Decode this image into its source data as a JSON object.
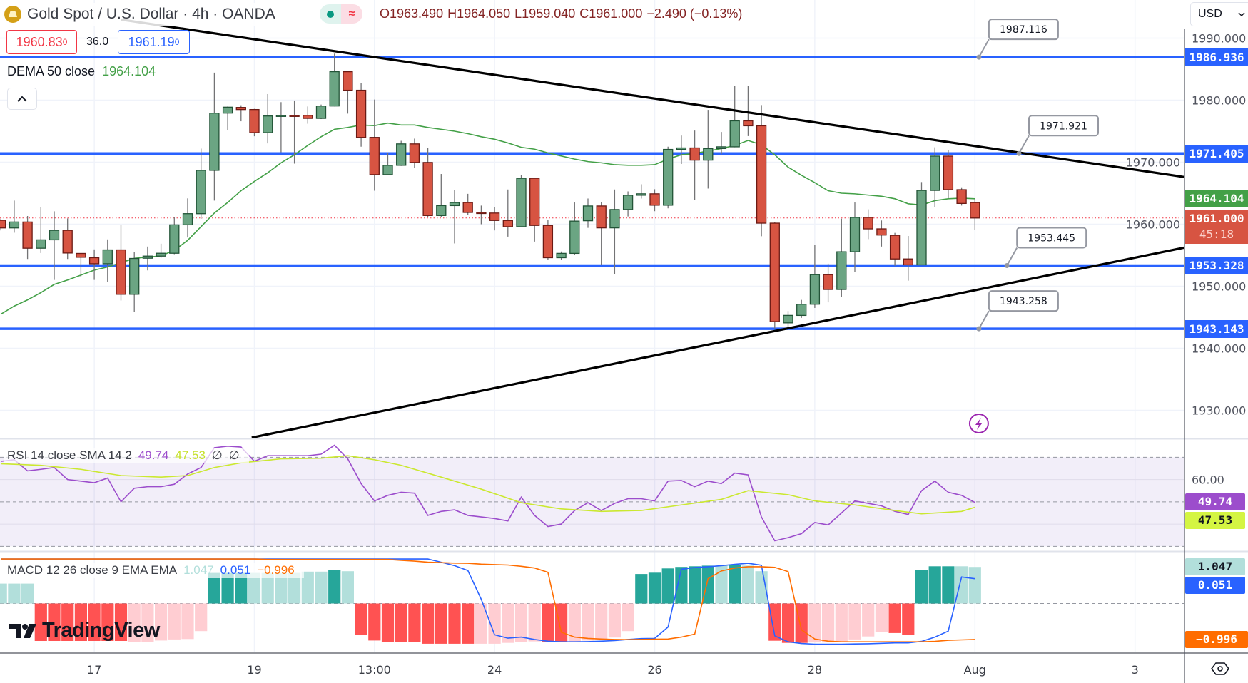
{
  "header": {
    "symbol_icon": "gold-bars-icon",
    "title": "Gold Spot / U.S. Dollar · 4h · OANDA",
    "market_status_icon": "market-open-dot-icon",
    "data_status_glyph": "≈",
    "ohlc": {
      "open": "O1963.490",
      "high": "H1964.050",
      "low": "L1959.040",
      "close": "C1961.000",
      "change": "−2.490 (−0.13%)"
    },
    "sell_price": "1960.83",
    "sell_price_sup": "0",
    "spread": "36.0",
    "buy_price": "1961.19",
    "buy_price_sup": "0",
    "currency": "USD"
  },
  "legends": {
    "dema": {
      "label": "DEMA 50 close",
      "value": "1964.104"
    },
    "rsi": {
      "label": "RSI 14 close SMA 14 2",
      "rsi_value": "49.74",
      "sma_value": "47.53",
      "extra1": "∅",
      "extra2": "∅"
    },
    "macd": {
      "label": "MACD 12 26 close 9 EMA EMA",
      "hist_value": "1.047",
      "macd_value": "0.051",
      "signal_value": "−0.996"
    }
  },
  "price_axis": {
    "ticks": [
      {
        "value": 1990,
        "label": "1990.000"
      },
      {
        "value": 1980,
        "label": "1980.000"
      },
      {
        "value": 1970,
        "label": "1970.000"
      },
      {
        "value": 1960,
        "label": "1960.000"
      },
      {
        "value": 1950,
        "label": "1950.000"
      },
      {
        "value": 1940,
        "label": "1940.000"
      },
      {
        "value": 1930,
        "label": "1930.000"
      }
    ],
    "badges": {
      "level_1": "1986.936",
      "level_2": "1971.405",
      "dema": "1964.104",
      "last_price": "1961.000",
      "countdown": "45:18",
      "level_3": "1953.328",
      "level_4": "1943.143"
    },
    "rsi_tick": {
      "value": 60,
      "label": "60.00"
    },
    "rsi_badges": {
      "rsi": "49.74",
      "sma": "47.53"
    },
    "macd_badges": {
      "hist": "1.047",
      "macd": "0.051",
      "signal": "−0.996"
    }
  },
  "time_axis": [
    {
      "label": "17",
      "bar": 8
    },
    {
      "label": "19",
      "bar": 20
    },
    {
      "label": "13:00",
      "bar": 29
    },
    {
      "label": "24",
      "bar": 38
    },
    {
      "label": "26",
      "bar": 50
    },
    {
      "label": "28",
      "bar": 62
    },
    {
      "label": "Aug",
      "bar": 74
    },
    {
      "label": "3",
      "bar": 86
    }
  ],
  "colors": {
    "up": "#6ba583",
    "up_border": "#225437",
    "down": "#d75442",
    "down_border": "#6b1a14",
    "wick": "#737375",
    "level_line": "#2962ff",
    "trendline": "#000000",
    "dema": "#43a047",
    "rsi": "#9c4dcc",
    "rsi_sma": "#cbe830",
    "macd": "#2962ff",
    "signal": "#ff6d00",
    "hist_G": "#26a69a",
    "hist_g": "#b2dfdb",
    "hist_R": "#ff5252",
    "hist_r": "#ffcdd2",
    "last_price": "#f23645"
  },
  "logo": {
    "text": "TradingView"
  },
  "chart_data": {
    "type": "candlestick",
    "symbol": "Gold Spot / U.S. Dollar",
    "interval": "4h",
    "price_range": [
      1925.6,
      1996.2
    ],
    "grid": true,
    "ohlc_order": [
      "open",
      "high",
      "low",
      "close"
    ],
    "candles": [
      [
        1960.63,
        1960.9,
        1959.0,
        1959.4
      ],
      [
        1959.4,
        1963.81,
        1958.63,
        1960.36
      ],
      [
        1960.36,
        1961.32,
        1954.4,
        1956.13
      ],
      [
        1956.13,
        1962.74,
        1955.36,
        1957.48
      ],
      [
        1957.48,
        1962.08,
        1951.02,
        1959.01
      ],
      [
        1959.01,
        1960.93,
        1954.4,
        1955.36
      ],
      [
        1955.29,
        1955.29,
        1951.52,
        1954.67
      ],
      [
        1954.6,
        1955.94,
        1951.02,
        1953.63
      ],
      [
        1953.63,
        1957.55,
        1950.75,
        1955.86
      ],
      [
        1955.86,
        1959.86,
        1947.7,
        1948.7
      ],
      [
        1948.7,
        1955.55,
        1945.9,
        1954.48
      ],
      [
        1954.52,
        1956.4,
        1952.56,
        1954.86
      ],
      [
        1954.86,
        1956.86,
        1954.6,
        1955.32
      ],
      [
        1955.32,
        1961.13,
        1955.17,
        1959.9
      ],
      [
        1959.9,
        1964.16,
        1957.86,
        1961.7
      ],
      [
        1961.7,
        1972.19,
        1960.86,
        1968.69
      ],
      [
        1968.69,
        1984.44,
        1963.81,
        1977.91
      ],
      [
        1977.91,
        1978.98,
        1975.14,
        1978.87
      ],
      [
        1978.83,
        1979.18,
        1976.6,
        1978.49
      ],
      [
        1978.49,
        1978.6,
        1974.18,
        1974.76
      ],
      [
        1974.76,
        1980.98,
        1973.03,
        1977.45
      ],
      [
        1977.5,
        1979.68,
        1971.61,
        1977.55
      ],
      [
        1977.55,
        1979.95,
        1969.77,
        1977.5
      ],
      [
        1977.56,
        1978.98,
        1976.2,
        1977.06
      ],
      [
        1977.06,
        1979.29,
        1976.95,
        1979.06
      ],
      [
        1979.06,
        1987.5,
        1979.0,
        1984.59
      ],
      [
        1984.59,
        1984.7,
        1977.83,
        1981.6
      ],
      [
        1981.6,
        1982.7,
        1972.5,
        1974.0
      ],
      [
        1974.0,
        1980.1,
        1965.4,
        1968.0
      ],
      [
        1968.0,
        1971.5,
        1967.9,
        1969.5
      ],
      [
        1969.5,
        1973.45,
        1969.4,
        1972.95
      ],
      [
        1972.95,
        1973.8,
        1969.1,
        1969.96
      ],
      [
        1969.96,
        1972.3,
        1961.2,
        1961.4
      ],
      [
        1961.4,
        1968.1,
        1961.1,
        1963.0
      ],
      [
        1963.0,
        1965.5,
        1956.9,
        1963.5
      ],
      [
        1963.5,
        1964.9,
        1961.5,
        1961.9
      ],
      [
        1961.9,
        1963.0,
        1960.0,
        1961.8
      ],
      [
        1961.8,
        1962.7,
        1959.0,
        1960.6
      ],
      [
        1960.6,
        1965.6,
        1958.0,
        1959.6
      ],
      [
        1959.6,
        1967.9,
        1959.5,
        1967.4
      ],
      [
        1967.4,
        1967.5,
        1957.2,
        1959.8
      ],
      [
        1959.8,
        1960.66,
        1954.2,
        1954.6
      ],
      [
        1954.6,
        1955.6,
        1954.3,
        1955.3
      ],
      [
        1955.3,
        1963.5,
        1955.0,
        1960.5
      ],
      [
        1960.56,
        1964.14,
        1959.41,
        1962.94
      ],
      [
        1962.94,
        1963.6,
        1953.4,
        1959.41
      ],
      [
        1959.41,
        1965.6,
        1951.9,
        1962.37
      ],
      [
        1962.37,
        1965.29,
        1961.25,
        1964.67
      ],
      [
        1964.67,
        1966.44,
        1964.14,
        1964.9
      ],
      [
        1964.9,
        1965.64,
        1962.1,
        1963.06
      ],
      [
        1963.06,
        1972.5,
        1962.56,
        1972.06
      ],
      [
        1972.06,
        1974.29,
        1969.71,
        1972.3
      ],
      [
        1972.3,
        1975.1,
        1963.94,
        1970.33
      ],
      [
        1970.33,
        1978.44,
        1965.75,
        1972.2
      ],
      [
        1972.2,
        1974.87,
        1971.3,
        1972.48
      ],
      [
        1972.48,
        1982.25,
        1972.4,
        1976.67
      ],
      [
        1976.67,
        1982.25,
        1974.21,
        1975.87
      ],
      [
        1975.87,
        1979.21,
        1958.06,
        1960.17
      ],
      [
        1960.17,
        1960.3,
        1943.2,
        1944.3
      ],
      [
        1944.1,
        1946.0,
        1943.4,
        1945.3
      ],
      [
        1945.3,
        1947.8,
        1944.9,
        1947.1
      ],
      [
        1947.1,
        1956.7,
        1946.5,
        1951.87
      ],
      [
        1951.87,
        1953.64,
        1947.4,
        1949.48
      ],
      [
        1949.48,
        1960.9,
        1948.33,
        1955.56
      ],
      [
        1955.56,
        1963.5,
        1952.29,
        1961.1
      ],
      [
        1961.1,
        1962.4,
        1957.6,
        1959.25
      ],
      [
        1959.25,
        1960.6,
        1956.4,
        1958.25
      ],
      [
        1958.2,
        1958.6,
        1953.3,
        1954.4
      ],
      [
        1954.4,
        1958.1,
        1950.9,
        1953.45
      ],
      [
        1953.45,
        1966.8,
        1953.4,
        1965.45
      ],
      [
        1965.45,
        1972.4,
        1962.8,
        1970.98
      ],
      [
        1970.98,
        1972.0,
        1964.2,
        1965.57
      ],
      [
        1965.57,
        1965.95,
        1963.0,
        1963.35
      ],
      [
        1963.49,
        1964.05,
        1959.04,
        1961.0
      ]
    ],
    "dema_50": [
      1945.5,
      1946.8,
      1947.8,
      1948.97,
      1950.3,
      1951.0,
      1951.8,
      1952.6,
      1953.1,
      1953.8,
      1954.5,
      1954.7,
      1954.9,
      1955.8,
      1957.4,
      1959.6,
      1961.8,
      1963.5,
      1965.4,
      1966.9,
      1968.3,
      1969.9,
      1971.2,
      1972.7,
      1974.1,
      1975.3,
      1975.6,
      1976.0,
      1975.9,
      1976.3,
      1976.0,
      1976.0,
      1975.6,
      1975.3,
      1975.0,
      1974.6,
      1974.1,
      1973.7,
      1973.1,
      1972.4,
      1972.1,
      1971.5,
      1971.0,
      1970.5,
      1970.1,
      1969.9,
      1969.6,
      1969.5,
      1969.5,
      1969.6,
      1970.5,
      1971.2,
      1971.4,
      1971.8,
      1972.2,
      1972.7,
      1973.5,
      1972.8,
      1971.2,
      1969.2,
      1967.9,
      1966.7,
      1965.4,
      1965.0,
      1964.9,
      1964.7,
      1964.5,
      1964.1,
      1963.3,
      1963.1,
      1963.8,
      1964.1,
      1964.2,
      1964.104
    ],
    "last_price": 1961.0,
    "horizontal_levels": [
      1986.936,
      1971.405,
      1953.328,
      1943.143
    ],
    "trendlines": [
      {
        "from": [
          10,
          1993.0
        ],
        "to": [
          89.85,
          1967.56
        ],
        "extend": "right"
      },
      {
        "from": [
          19.8,
          1925.6
        ],
        "to": [
          89.85,
          1956.3
        ],
        "extend": "right"
      }
    ],
    "price_callouts": [
      {
        "label": "1987.116",
        "bar": 74.3,
        "price": 1986.936
      },
      {
        "label": "1971.921",
        "bar": 77.3,
        "price": 1971.405
      },
      {
        "label": "1953.445",
        "bar": 76.4,
        "price": 1953.328
      },
      {
        "label": "1943.258",
        "bar": 74.3,
        "price": 1943.143
      }
    ],
    "alert_icon": {
      "name": "lightning-alert-icon",
      "bar": 74.3
    },
    "rsi": {
      "range": [
        28,
        78
      ],
      "bands": [
        70,
        50,
        30
      ],
      "values": [
        68.2,
        68.9,
        63.9,
        64.6,
        65.4,
        60,
        59.3,
        58.6,
        60.7,
        50,
        56.1,
        56.8,
        56.8,
        57.9,
        62.5,
        65.4,
        74.3,
        75,
        74.6,
        68.2,
        70.7,
        70.7,
        70.7,
        70.7,
        71.4,
        75.4,
        69.3,
        58.2,
        50.4,
        52.9,
        54.3,
        53.9,
        43.9,
        45.7,
        46.4,
        43.9,
        43.2,
        42.5,
        41.4,
        52.1,
        43.9,
        38.9,
        40,
        46.1,
        49.6,
        46.1,
        49.3,
        51.4,
        51.4,
        50.4,
        59.3,
        59.6,
        56.8,
        59.3,
        58.2,
        62.9,
        62.1,
        43.2,
        32.5,
        33.9,
        35.7,
        40.7,
        39.6,
        45,
        50.4,
        49.3,
        48.2,
        45.7,
        44.3,
        55,
        59.3,
        54.3,
        52.9,
        49.74
      ],
      "sma_points": [
        [
          1,
          67.1
        ],
        [
          4,
          66.4
        ],
        [
          7,
          64.6
        ],
        [
          10,
          61.8
        ],
        [
          13,
          61.1
        ],
        [
          15,
          61.8
        ],
        [
          17,
          65.4
        ],
        [
          19,
          67.5
        ],
        [
          22,
          69.3
        ],
        [
          25,
          69.6
        ],
        [
          27,
          70.7
        ],
        [
          29,
          68.9
        ],
        [
          31,
          66.4
        ],
        [
          34,
          61.1
        ],
        [
          37,
          55.7
        ],
        [
          40,
          49.6
        ],
        [
          43,
          46.8
        ],
        [
          46,
          45.7
        ],
        [
          49,
          46.1
        ],
        [
          52,
          48.6
        ],
        [
          55,
          51.1
        ],
        [
          57,
          55
        ],
        [
          60,
          53.2
        ],
        [
          62,
          50.4
        ],
        [
          65,
          48.6
        ],
        [
          68,
          46.1
        ],
        [
          70,
          44.6
        ],
        [
          73,
          45.7
        ],
        [
          74,
          47.53
        ]
      ]
    },
    "macd": {
      "histogram": [
        9.3,
        9.3,
        9.3,
        -17.5,
        -17.5,
        -17.5,
        -17.5,
        -17.5,
        -17.5,
        -17.5,
        -17.9,
        -17.9,
        -17.3,
        -16.8,
        -16.6,
        -12.9,
        14.3,
        14.3,
        14.3,
        14.3,
        14.3,
        14.3,
        14.3,
        14.9,
        14.9,
        15.7,
        15.1,
        -14.8,
        -17.3,
        -17.9,
        -18.1,
        -18.1,
        -18.8,
        -18.8,
        -18.8,
        -18.8,
        -18.8,
        -18.8,
        -18.4,
        -18.1,
        -17.7,
        -18.1,
        -18.1,
        -17.7,
        -17.3,
        -16.8,
        -15.9,
        -12.9,
        13.8,
        14.4,
        16.4,
        17.1,
        17.4,
        17.7,
        17.7,
        17.9,
        17.7,
        15.1,
        -17.4,
        -18.4,
        -18.4,
        -18.2,
        -18.2,
        -17.7,
        -16.8,
        -15.4,
        -13.4,
        -13.8,
        -14.6,
        15.8,
        17.4,
        17.4,
        17.4,
        17.1
      ],
      "hist_tones": "gggRRRRRRRrrrrrrGGGggggggGgRRRRRRRRRrrrrrRRrrrrrGGGGGGgGggRRRrrrrrrRRGGGgg",
      "macd_line": [
        20.8,
        20.8,
        20.8,
        20.8,
        20.8,
        20.8,
        20.8,
        20.8,
        20.8,
        20.8,
        20.8,
        20.8,
        20.8,
        20.8,
        20.8,
        20.8,
        20.8,
        20.8,
        20.8,
        20.8,
        20.8,
        20.8,
        20.8,
        20.8,
        20.8,
        20.8,
        20.8,
        20.8,
        20.8,
        20.8,
        20.8,
        20.8,
        20.8,
        19.3,
        17.7,
        15.4,
        2,
        -14.6,
        -16.2,
        -15.7,
        -16.8,
        -17.6,
        -17.9,
        -17.9,
        -17.8,
        -17.6,
        -17.3,
        -16.8,
        -16.4,
        -16.3,
        -11,
        16,
        16.8,
        17.2,
        17.7,
        18.3,
        18.8,
        17.9,
        -15.1,
        -17.9,
        -18.7,
        -19,
        -19,
        -19,
        -18.9,
        -18.8,
        -18.6,
        -18.4,
        -18.4,
        -17.7,
        -15.7,
        -12.9,
        12.4,
        11.6
      ],
      "signal_line": [
        20.8,
        20.8,
        20.8,
        20.8,
        20.8,
        20.8,
        20.8,
        20.8,
        20.8,
        20.8,
        20.8,
        20.8,
        20.8,
        20.8,
        20.8,
        20.8,
        20.8,
        20.8,
        20.8,
        20.8,
        20.6,
        20.6,
        20.6,
        20.6,
        20.6,
        20.6,
        20.6,
        20.6,
        20.6,
        20.6,
        20.2,
        19.8,
        19.3,
        19.1,
        18.9,
        18.8,
        18.4,
        18.2,
        18,
        17.4,
        16.6,
        14.6,
        -13.4,
        -15.7,
        -16.3,
        -16.6,
        -16.8,
        -16.9,
        -16.8,
        -16.7,
        -16.6,
        -15.7,
        -14.3,
        11.6,
        15.2,
        16.6,
        17.2,
        17.2,
        16.9,
        14.9,
        -12.3,
        -16.6,
        -17.6,
        -17.9,
        -17.9,
        -17.9,
        -17.9,
        -17.9,
        -17.9,
        -17.9,
        -17.7,
        -17.2,
        -17,
        -16.8
      ]
    }
  }
}
